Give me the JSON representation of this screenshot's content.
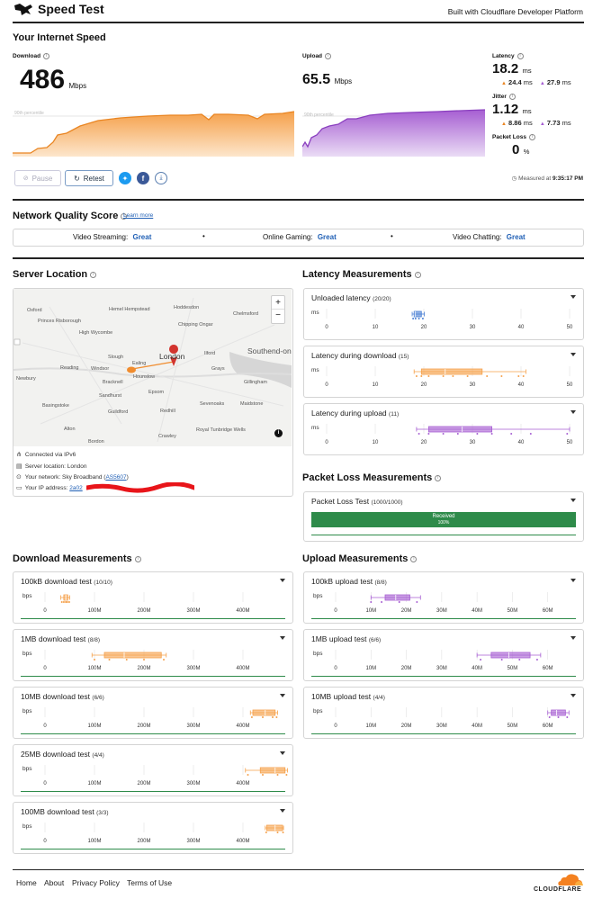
{
  "header": {
    "title": "Speed Test",
    "tagline": "Built with Cloudflare Developer Platform"
  },
  "speed": {
    "section_title": "Your Internet Speed",
    "download_label": "Download",
    "download_value": "486",
    "download_unit": "Mbps",
    "upload_label": "Upload",
    "upload_value": "65.5",
    "upload_unit": "Mbps",
    "percentile_label": "90th percentile",
    "latency_label": "Latency",
    "latency_value": "18.2",
    "latency_unit": "ms",
    "latency_down": "24.4",
    "latency_up": "27.9",
    "jitter_label": "Jitter",
    "jitter_value": "1.12",
    "jitter_unit": "ms",
    "jitter_down": "8.86",
    "jitter_up": "7.73",
    "ms": "ms",
    "packet_loss_label": "Packet Loss",
    "packet_loss_value": "0",
    "packet_loss_unit": "%",
    "measured_at_label": "Measured at",
    "measured_at_time": "9:35:17 PM"
  },
  "controls": {
    "pause_label": "Pause",
    "retest_label": "Retest"
  },
  "quality": {
    "title": "Network Quality Score",
    "learn_more": "Learn more",
    "items": [
      {
        "label": "Video Streaming:",
        "value": "Great"
      },
      {
        "label": "Online Gaming:",
        "value": "Great"
      },
      {
        "label": "Video Chatting:",
        "value": "Great"
      }
    ]
  },
  "server": {
    "title": "Server Location",
    "map_places": [
      "Oxford",
      "Hemel Hempstead",
      "Hoddesdon",
      "Chelmsford",
      "Princes Risborough",
      "Chipping Ongar",
      "High Wycombe",
      "London",
      "Ilford",
      "Southend-on",
      "Slough",
      "Ealing",
      "Reading",
      "Windsor",
      "Hounslow",
      "Grays",
      "Newbury",
      "Bracknell",
      "Epsom",
      "Gillingham",
      "Sandhurst",
      "Basingstoke",
      "Guildford",
      "Redhill",
      "Sevenoaks",
      "Maidstone",
      "Royal Tunbridge Wells",
      "Alton",
      "Crawley",
      "Bordon"
    ],
    "connected_via": "Connected via IPv6",
    "server_location": "Server location: London",
    "network_prefix": "Your network: Sky Broadband (",
    "network_as": "AS5607",
    "network_suffix": ")",
    "ip_label": "Your IP address:",
    "ip_value": "2a02"
  },
  "latency_measurements": {
    "title": "Latency Measurements",
    "tests": [
      {
        "name": "Unloaded latency",
        "count": "(20/20)"
      },
      {
        "name": "Latency during download",
        "count": "(15)"
      },
      {
        "name": "Latency during upload",
        "count": "(11)"
      }
    ],
    "unit": "ms",
    "ticks": [
      "0",
      "10",
      "20",
      "30",
      "40",
      "50"
    ]
  },
  "packet_loss": {
    "title": "Packet Loss Measurements",
    "test_name": "Packet Loss Test",
    "count": "(1000/1000)",
    "bar_label": "Received",
    "bar_percent": "100%",
    "received_fraction": 1.0
  },
  "download_measurements": {
    "title": "Download Measurements",
    "unit": "bps",
    "ticks": [
      "0",
      "100M",
      "200M",
      "300M",
      "400M"
    ],
    "tests": [
      {
        "name": "100kB download test",
        "count": "(10/10)"
      },
      {
        "name": "1MB download test",
        "count": "(8/8)"
      },
      {
        "name": "10MB download test",
        "count": "(6/6)"
      },
      {
        "name": "25MB download test",
        "count": "(4/4)"
      },
      {
        "name": "100MB download test",
        "count": "(3/3)"
      }
    ]
  },
  "upload_measurements": {
    "title": "Upload Measurements",
    "unit": "bps",
    "ticks": [
      "0",
      "10M",
      "20M",
      "30M",
      "40M",
      "50M",
      "60M"
    ],
    "tests": [
      {
        "name": "100kB upload test",
        "count": "(8/8)"
      },
      {
        "name": "1MB upload test",
        "count": "(6/6)"
      },
      {
        "name": "10MB upload test",
        "count": "(4/4)"
      }
    ]
  },
  "footer": {
    "links": [
      "Home",
      "About",
      "Privacy Policy",
      "Terms of Use"
    ],
    "brand": "CLOUDFLARE"
  },
  "colors": {
    "download": "#f5a04a",
    "upload": "#a65ed2",
    "good": "#2e8b4a",
    "link": "#1f5fb5",
    "unloaded": "#4a7fd4"
  }
}
